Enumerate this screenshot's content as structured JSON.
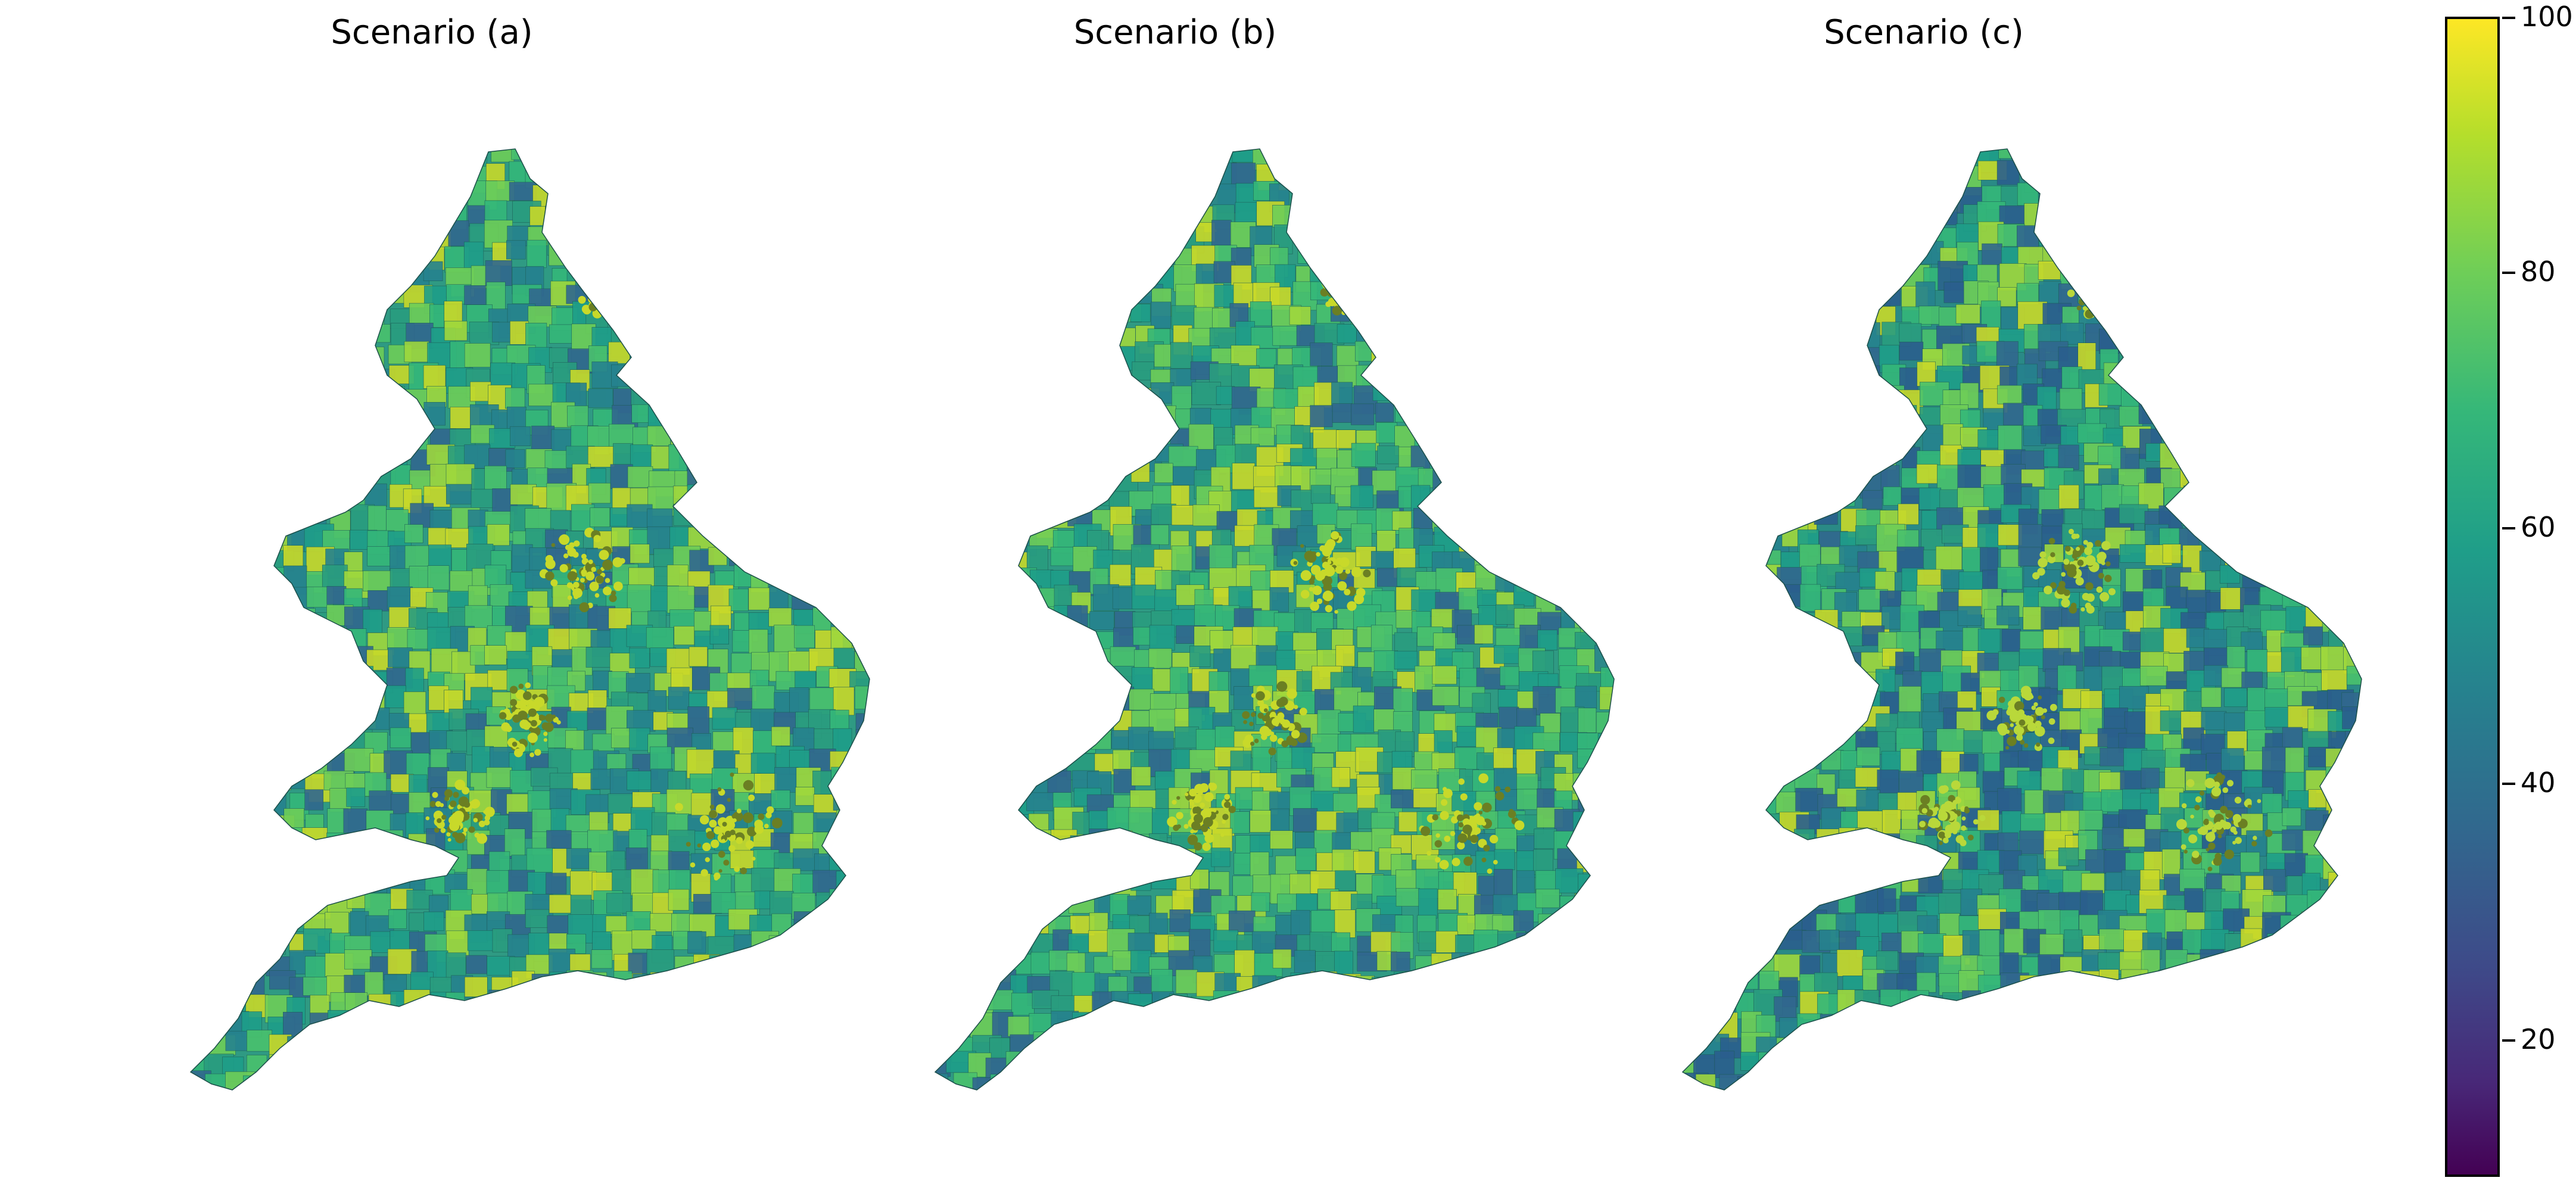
{
  "panels": [
    {
      "title": "Scenario (a)",
      "tint": "#2f9a83",
      "hot": "#c8d92a",
      "dark": "#2c6e8c"
    },
    {
      "title": "Scenario (b)",
      "tint": "#2f9a83",
      "hot": "#c8d92a",
      "dark": "#2c6e8c"
    },
    {
      "title": "Scenario (c)",
      "tint": "#2a8a86",
      "hot": "#b9d83a",
      "dark": "#2b5f8d"
    }
  ],
  "colorbar": {
    "colormap": "viridis",
    "min": 10,
    "max": 100,
    "ticks": [
      "20",
      "40",
      "60",
      "80",
      "100"
    ]
  }
}
